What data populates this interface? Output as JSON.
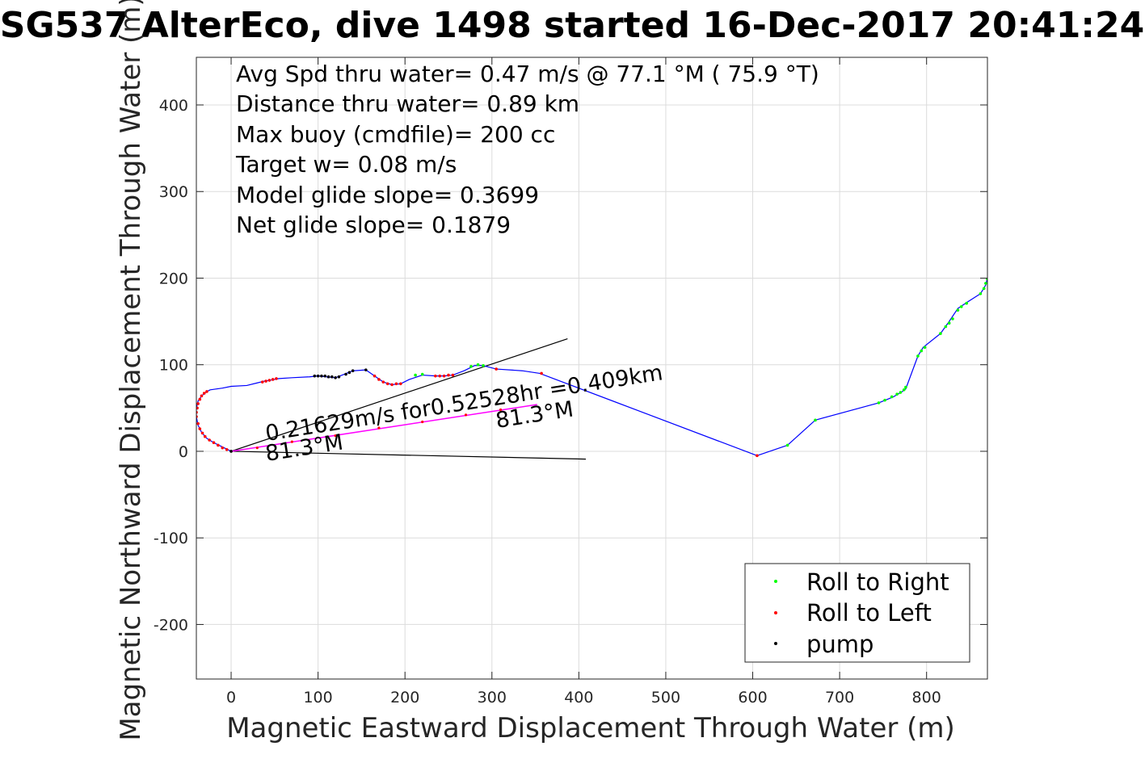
{
  "chart_data": {
    "type": "line",
    "title": "SG537 AlterEco, dive 1498 started 16-Dec-2017 20:41:24",
    "xlabel": "Magnetic Eastward Displacement Through Water (m)",
    "ylabel": "Magnetic Northward Displacement Through Water (m)",
    "xlim": [
      -40,
      870
    ],
    "ylim": [
      -263,
      455
    ],
    "xticks": [
      0,
      100,
      200,
      300,
      400,
      500,
      600,
      700,
      800
    ],
    "yticks": [
      -200,
      -100,
      0,
      100,
      200,
      300,
      400
    ],
    "xtick_labels": [
      "0",
      "100",
      "200",
      "300",
      "400",
      "500",
      "600",
      "700",
      "800"
    ],
    "ytick_labels": [
      "-200",
      "-100",
      "0",
      "100",
      "200",
      "300",
      "400"
    ],
    "grid": true,
    "info_text": [
      "Avg Spd thru water=  0.47 m/s @  77.1 °M ( 75.9 °T)",
      "Distance thru water=  0.89 km",
      "Max buoy (cmdfile)= 200 cc",
      "Target w= 0.08 m/s",
      "Model glide slope= 0.3699",
      "Net glide slope= 0.1879"
    ],
    "annotations": {
      "current_text": "0.21629m/s for0.52528hr =0.409km",
      "heading_text_1": "81.3°M",
      "heading_text_2": "81.3°M"
    },
    "track": [
      [
        0,
        0
      ],
      [
        -10,
        5
      ],
      [
        -20,
        10
      ],
      [
        -28,
        15
      ],
      [
        -34,
        22
      ],
      [
        -38,
        30
      ],
      [
        -40,
        40
      ],
      [
        -40,
        50
      ],
      [
        -38,
        58
      ],
      [
        -34,
        64
      ],
      [
        -28,
        69
      ],
      [
        -24,
        71
      ],
      [
        -10,
        73
      ],
      [
        0,
        75
      ],
      [
        18,
        76
      ],
      [
        30,
        79
      ],
      [
        38,
        81
      ],
      [
        50,
        83
      ],
      [
        55,
        84
      ],
      [
        70,
        85
      ],
      [
        90,
        86
      ],
      [
        100,
        87
      ],
      [
        110,
        86
      ],
      [
        120,
        85
      ],
      [
        130,
        89
      ],
      [
        140,
        93
      ],
      [
        155,
        94
      ],
      [
        165,
        87
      ],
      [
        175,
        80
      ],
      [
        185,
        77
      ],
      [
        195,
        78
      ],
      [
        205,
        83
      ],
      [
        220,
        88
      ],
      [
        235,
        87
      ],
      [
        245,
        87
      ],
      [
        255,
        88
      ],
      [
        268,
        93
      ],
      [
        280,
        99
      ],
      [
        290,
        99
      ],
      [
        305,
        95
      ],
      [
        335,
        93
      ],
      [
        355,
        90
      ],
      [
        605,
        -5
      ],
      [
        640,
        7
      ],
      [
        672,
        36
      ],
      [
        745,
        56
      ],
      [
        762,
        63
      ],
      [
        772,
        69
      ],
      [
        776,
        72
      ],
      [
        790,
        110
      ],
      [
        796,
        120
      ],
      [
        816,
        136
      ],
      [
        826,
        150
      ],
      [
        836,
        165
      ],
      [
        848,
        173
      ],
      [
        862,
        182
      ],
      [
        868,
        192
      ],
      [
        870,
        200
      ]
    ],
    "current_segment": {
      "x": [
        0,
        352
      ],
      "y": [
        0,
        54
      ],
      "intermediate": [
        [
          30,
          4
        ],
        [
          70,
          11
        ],
        [
          120,
          18
        ],
        [
          170,
          27
        ],
        [
          220,
          34
        ],
        [
          270,
          42
        ],
        [
          310,
          48
        ]
      ]
    },
    "wedge_lines": [
      {
        "x": [
          0,
          387
        ],
        "y": [
          0,
          130
        ]
      },
      {
        "x": [
          0,
          408
        ],
        "y": [
          0,
          -9
        ]
      }
    ],
    "roll_right_points": [
      [
        212,
        88
      ],
      [
        220,
        89
      ],
      [
        276,
        98
      ],
      [
        284,
        100
      ],
      [
        290,
        99
      ],
      [
        640,
        7
      ],
      [
        672,
        36
      ],
      [
        745,
        56
      ],
      [
        752,
        59
      ],
      [
        760,
        63
      ],
      [
        766,
        66
      ],
      [
        770,
        68
      ],
      [
        774,
        71
      ],
      [
        776,
        74
      ],
      [
        790,
        110
      ],
      [
        794,
        116
      ],
      [
        798,
        120
      ],
      [
        816,
        136
      ],
      [
        822,
        144
      ],
      [
        826,
        148
      ],
      [
        830,
        153
      ],
      [
        836,
        163
      ],
      [
        840,
        167
      ],
      [
        846,
        171
      ],
      [
        862,
        182
      ],
      [
        866,
        188
      ],
      [
        868,
        194
      ],
      [
        870,
        199
      ]
    ],
    "roll_left_points": [
      [
        -40,
        40
      ],
      [
        -40,
        45
      ],
      [
        -39,
        50
      ],
      [
        -38,
        55
      ],
      [
        -36,
        60
      ],
      [
        -34,
        64
      ],
      [
        -31,
        67
      ],
      [
        -28,
        69
      ],
      [
        -38,
        32
      ],
      [
        -36,
        26
      ],
      [
        -33,
        21
      ],
      [
        -30,
        17
      ],
      [
        -25,
        13
      ],
      [
        -20,
        10
      ],
      [
        -15,
        7
      ],
      [
        -10,
        4
      ],
      [
        -5,
        2
      ],
      [
        36,
        80
      ],
      [
        40,
        81
      ],
      [
        44,
        82
      ],
      [
        48,
        83
      ],
      [
        52,
        84
      ],
      [
        165,
        87
      ],
      [
        170,
        83
      ],
      [
        175,
        80
      ],
      [
        180,
        78
      ],
      [
        185,
        77
      ],
      [
        190,
        78
      ],
      [
        195,
        78
      ],
      [
        235,
        87
      ],
      [
        240,
        87
      ],
      [
        245,
        87
      ],
      [
        250,
        88
      ],
      [
        255,
        88
      ],
      [
        305,
        95
      ],
      [
        357,
        90
      ],
      [
        605,
        -5
      ]
    ],
    "pump_points": [
      [
        96,
        87
      ],
      [
        100,
        87
      ],
      [
        104,
        87
      ],
      [
        108,
        87
      ],
      [
        112,
        86
      ],
      [
        116,
        86
      ],
      [
        120,
        85
      ],
      [
        124,
        86
      ],
      [
        132,
        89
      ],
      [
        136,
        91
      ],
      [
        140,
        93
      ],
      [
        155,
        94
      ],
      [
        0,
        0
      ]
    ],
    "legend": {
      "location": "bottom-right",
      "entries": [
        "Roll to Right",
        "Roll to Left",
        "pump"
      ]
    },
    "colors": {
      "track": "#0000ff",
      "roll_right": "#00ff00",
      "roll_left": "#ff0000",
      "pump": "#000000",
      "current": "#ff00ff",
      "wedge": "#000000",
      "grid": "#dcdcdc",
      "axis": "#262626"
    }
  }
}
